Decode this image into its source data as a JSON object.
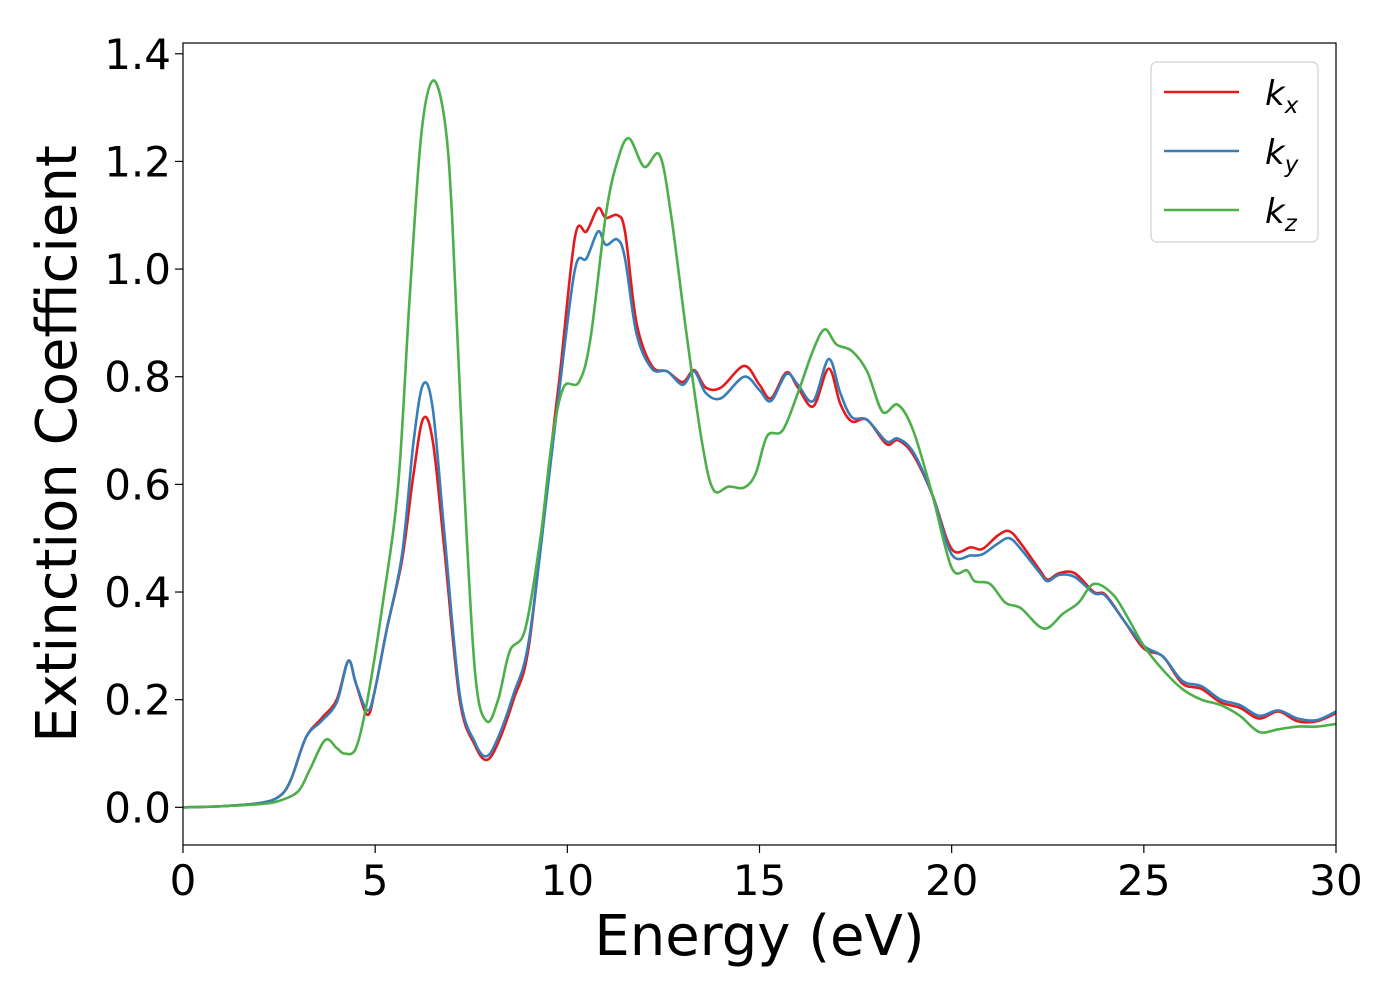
{
  "chart_data": {
    "type": "line",
    "title": "",
    "xlabel": "Energy (eV)",
    "ylabel": "Extinction Coefficient",
    "xlim": [
      0,
      30
    ],
    "ylim": [
      -0.07,
      1.42
    ],
    "xticks": [
      0,
      5,
      10,
      15,
      20,
      25,
      30
    ],
    "xtick_labels": [
      "0",
      "5",
      "10",
      "15",
      "20",
      "25",
      "30"
    ],
    "yticks": [
      0.0,
      0.2,
      0.4,
      0.6,
      0.8,
      1.0,
      1.2,
      1.4
    ],
    "ytick_labels": [
      "0.0",
      "0.2",
      "0.4",
      "0.6",
      "0.8",
      "1.0",
      "1.2",
      "1.4"
    ],
    "grid": false,
    "legend": {
      "position": "upper right"
    },
    "series": [
      {
        "name": "k_x",
        "label_base": "k",
        "label_sub": "x",
        "color": "#e41a1c",
        "points": [
          [
            0,
            0
          ],
          [
            1,
            0.002
          ],
          [
            2,
            0.008
          ],
          [
            2.5,
            0.02
          ],
          [
            2.8,
            0.05
          ],
          [
            3.2,
            0.13
          ],
          [
            3.6,
            0.165
          ],
          [
            4,
            0.2
          ],
          [
            4.3,
            0.272
          ],
          [
            4.5,
            0.23
          ],
          [
            4.8,
            0.172
          ],
          [
            5,
            0.22
          ],
          [
            5.3,
            0.33
          ],
          [
            5.7,
            0.46
          ],
          [
            6,
            0.62
          ],
          [
            6.25,
            0.722
          ],
          [
            6.5,
            0.68
          ],
          [
            6.8,
            0.48
          ],
          [
            7.2,
            0.2
          ],
          [
            7.6,
            0.115
          ],
          [
            7.9,
            0.088
          ],
          [
            8.2,
            0.12
          ],
          [
            8.6,
            0.2
          ],
          [
            9,
            0.3
          ],
          [
            9.5,
            0.62
          ],
          [
            9.8,
            0.8
          ],
          [
            10.2,
            1.06
          ],
          [
            10.5,
            1.07
          ],
          [
            10.8,
            1.113
          ],
          [
            11,
            1.095
          ],
          [
            11.3,
            1.1
          ],
          [
            11.5,
            1.07
          ],
          [
            11.8,
            0.9
          ],
          [
            12.2,
            0.82
          ],
          [
            12.6,
            0.81
          ],
          [
            13,
            0.79
          ],
          [
            13.3,
            0.812
          ],
          [
            13.6,
            0.78
          ],
          [
            14,
            0.78
          ],
          [
            14.6,
            0.82
          ],
          [
            15,
            0.785
          ],
          [
            15.3,
            0.76
          ],
          [
            15.7,
            0.808
          ],
          [
            16,
            0.78
          ],
          [
            16.4,
            0.745
          ],
          [
            16.8,
            0.815
          ],
          [
            17.1,
            0.75
          ],
          [
            17.4,
            0.717
          ],
          [
            17.8,
            0.72
          ],
          [
            18.3,
            0.675
          ],
          [
            18.6,
            0.682
          ],
          [
            19,
            0.655
          ],
          [
            19.5,
            0.58
          ],
          [
            20,
            0.48
          ],
          [
            20.5,
            0.483
          ],
          [
            20.8,
            0.48
          ],
          [
            21.2,
            0.505
          ],
          [
            21.5,
            0.513
          ],
          [
            21.8,
            0.49
          ],
          [
            22.3,
            0.44
          ],
          [
            22.5,
            0.423
          ],
          [
            22.8,
            0.435
          ],
          [
            23.2,
            0.435
          ],
          [
            23.7,
            0.4
          ],
          [
            24,
            0.395
          ],
          [
            24.5,
            0.345
          ],
          [
            25,
            0.295
          ],
          [
            25.5,
            0.28
          ],
          [
            26,
            0.23
          ],
          [
            26.5,
            0.22
          ],
          [
            27,
            0.195
          ],
          [
            27.5,
            0.185
          ],
          [
            28,
            0.165
          ],
          [
            28.5,
            0.178
          ],
          [
            29,
            0.16
          ],
          [
            29.5,
            0.16
          ],
          [
            30,
            0.175
          ]
        ]
      },
      {
        "name": "k_y",
        "label_base": "k",
        "label_sub": "y",
        "color": "#377eb8",
        "points": [
          [
            0,
            0
          ],
          [
            1,
            0.002
          ],
          [
            2,
            0.008
          ],
          [
            2.5,
            0.02
          ],
          [
            2.8,
            0.05
          ],
          [
            3.2,
            0.13
          ],
          [
            3.6,
            0.16
          ],
          [
            4,
            0.195
          ],
          [
            4.3,
            0.272
          ],
          [
            4.5,
            0.23
          ],
          [
            4.8,
            0.18
          ],
          [
            5,
            0.22
          ],
          [
            5.3,
            0.33
          ],
          [
            5.7,
            0.47
          ],
          [
            6,
            0.68
          ],
          [
            6.25,
            0.786
          ],
          [
            6.5,
            0.74
          ],
          [
            6.8,
            0.51
          ],
          [
            7.2,
            0.21
          ],
          [
            7.6,
            0.12
          ],
          [
            7.9,
            0.095
          ],
          [
            8.2,
            0.13
          ],
          [
            8.6,
            0.21
          ],
          [
            9,
            0.31
          ],
          [
            9.5,
            0.6
          ],
          [
            9.8,
            0.78
          ],
          [
            10.2,
            1.0
          ],
          [
            10.5,
            1.02
          ],
          [
            10.8,
            1.07
          ],
          [
            11,
            1.045
          ],
          [
            11.3,
            1.055
          ],
          [
            11.5,
            1.02
          ],
          [
            11.8,
            0.88
          ],
          [
            12.2,
            0.815
          ],
          [
            12.6,
            0.81
          ],
          [
            13,
            0.785
          ],
          [
            13.3,
            0.81
          ],
          [
            13.6,
            0.77
          ],
          [
            14,
            0.76
          ],
          [
            14.6,
            0.8
          ],
          [
            15,
            0.775
          ],
          [
            15.3,
            0.755
          ],
          [
            15.7,
            0.805
          ],
          [
            16,
            0.785
          ],
          [
            16.4,
            0.755
          ],
          [
            16.8,
            0.833
          ],
          [
            17.1,
            0.77
          ],
          [
            17.4,
            0.725
          ],
          [
            17.8,
            0.72
          ],
          [
            18.3,
            0.68
          ],
          [
            18.6,
            0.685
          ],
          [
            19,
            0.66
          ],
          [
            19.5,
            0.58
          ],
          [
            20,
            0.47
          ],
          [
            20.5,
            0.468
          ],
          [
            20.8,
            0.47
          ],
          [
            21.2,
            0.49
          ],
          [
            21.5,
            0.5
          ],
          [
            21.8,
            0.48
          ],
          [
            22.3,
            0.435
          ],
          [
            22.5,
            0.42
          ],
          [
            22.8,
            0.432
          ],
          [
            23.2,
            0.428
          ],
          [
            23.7,
            0.398
          ],
          [
            24,
            0.393
          ],
          [
            24.5,
            0.345
          ],
          [
            25,
            0.3
          ],
          [
            25.5,
            0.28
          ],
          [
            26,
            0.235
          ],
          [
            26.5,
            0.225
          ],
          [
            27,
            0.2
          ],
          [
            27.5,
            0.19
          ],
          [
            28,
            0.17
          ],
          [
            28.5,
            0.18
          ],
          [
            29,
            0.165
          ],
          [
            29.5,
            0.162
          ],
          [
            30,
            0.178
          ]
        ]
      },
      {
        "name": "k_z",
        "label_base": "k",
        "label_sub": "z",
        "color": "#4daf4a",
        "points": [
          [
            0,
            0
          ],
          [
            1,
            0.002
          ],
          [
            2,
            0.006
          ],
          [
            2.5,
            0.012
          ],
          [
            3,
            0.03
          ],
          [
            3.3,
            0.07
          ],
          [
            3.7,
            0.125
          ],
          [
            4,
            0.11
          ],
          [
            4.2,
            0.1
          ],
          [
            4.5,
            0.11
          ],
          [
            4.8,
            0.2
          ],
          [
            5.2,
            0.38
          ],
          [
            5.6,
            0.6
          ],
          [
            5.9,
            0.95
          ],
          [
            6.2,
            1.25
          ],
          [
            6.5,
            1.35
          ],
          [
            6.8,
            1.28
          ],
          [
            7,
            1.1
          ],
          [
            7.3,
            0.62
          ],
          [
            7.6,
            0.25
          ],
          [
            7.9,
            0.16
          ],
          [
            8.2,
            0.2
          ],
          [
            8.5,
            0.29
          ],
          [
            8.9,
            0.33
          ],
          [
            9.3,
            0.5
          ],
          [
            9.6,
            0.68
          ],
          [
            9.9,
            0.78
          ],
          [
            10.3,
            0.79
          ],
          [
            10.6,
            0.87
          ],
          [
            11,
            1.1
          ],
          [
            11.3,
            1.2
          ],
          [
            11.6,
            1.243
          ],
          [
            12,
            1.19
          ],
          [
            12.4,
            1.212
          ],
          [
            12.7,
            1.1
          ],
          [
            13.1,
            0.88
          ],
          [
            13.5,
            0.68
          ],
          [
            13.8,
            0.59
          ],
          [
            14.2,
            0.596
          ],
          [
            14.6,
            0.594
          ],
          [
            14.9,
            0.62
          ],
          [
            15.2,
            0.69
          ],
          [
            15.6,
            0.7
          ],
          [
            16,
            0.77
          ],
          [
            16.4,
            0.85
          ],
          [
            16.7,
            0.888
          ],
          [
            17,
            0.86
          ],
          [
            17.4,
            0.848
          ],
          [
            17.8,
            0.81
          ],
          [
            18.2,
            0.735
          ],
          [
            18.6,
            0.748
          ],
          [
            19,
            0.7
          ],
          [
            19.5,
            0.58
          ],
          [
            20,
            0.445
          ],
          [
            20.4,
            0.44
          ],
          [
            20.6,
            0.42
          ],
          [
            21,
            0.415
          ],
          [
            21.4,
            0.38
          ],
          [
            21.8,
            0.37
          ],
          [
            22.4,
            0.332
          ],
          [
            22.9,
            0.36
          ],
          [
            23.3,
            0.38
          ],
          [
            23.7,
            0.415
          ],
          [
            24.2,
            0.395
          ],
          [
            24.6,
            0.35
          ],
          [
            25,
            0.3
          ],
          [
            25.5,
            0.255
          ],
          [
            26,
            0.22
          ],
          [
            26.5,
            0.2
          ],
          [
            27,
            0.19
          ],
          [
            27.5,
            0.17
          ],
          [
            28,
            0.14
          ],
          [
            28.5,
            0.145
          ],
          [
            29,
            0.15
          ],
          [
            29.5,
            0.15
          ],
          [
            30,
            0.155
          ]
        ]
      }
    ]
  }
}
